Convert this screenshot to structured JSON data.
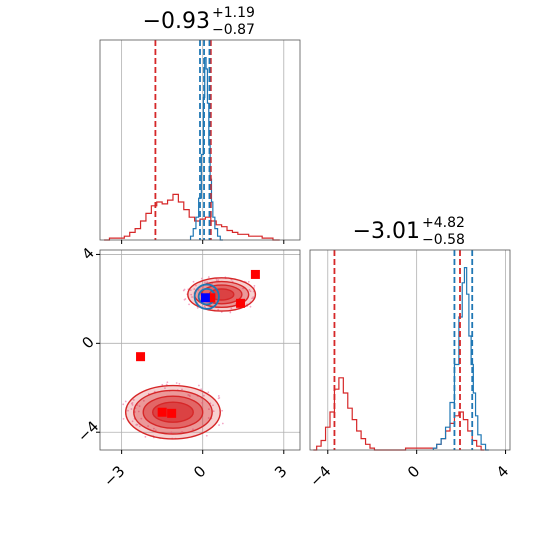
{
  "chart_data": {
    "type": "corner",
    "colors": {
      "blue": "#1f77b4",
      "red": "#d62728",
      "fill_red": "#e8828a",
      "marker_red": "#ff0000",
      "marker_blue": "#0000ff",
      "scatter": "#f4a6c6",
      "grid": "#b0b0b0"
    },
    "params": [
      {
        "title_value": "−0.93",
        "title_plus": "+1.19",
        "title_minus": "−0.87",
        "range": [
          -3.8,
          3.6
        ],
        "ticks": [
          -3,
          0,
          3
        ],
        "tick_labels": [
          "−3",
          "0",
          "3"
        ],
        "blue_hist": {
          "x": [
            -0.4,
            -0.3,
            -0.2,
            -0.1,
            0.0,
            0.05,
            0.1,
            0.15,
            0.2,
            0.25,
            0.3,
            0.35,
            0.4,
            0.5,
            0.6,
            0.7
          ],
          "y": [
            0.02,
            0.06,
            0.12,
            0.22,
            0.45,
            0.75,
            0.96,
            0.9,
            0.72,
            0.5,
            0.32,
            0.2,
            0.12,
            0.06,
            0.02,
            0.0
          ]
        },
        "red_hist": {
          "x": [
            -3.6,
            -3.3,
            -3.0,
            -2.8,
            -2.6,
            -2.4,
            -2.2,
            -2.0,
            -1.8,
            -1.6,
            -1.4,
            -1.2,
            -1.0,
            -0.8,
            -0.6,
            -0.4,
            -0.2,
            0.0,
            0.2,
            0.4,
            0.6,
            0.8,
            1.0,
            1.2,
            1.4,
            1.6,
            1.8,
            2.0,
            2.4,
            2.8
          ],
          "y": [
            0.0,
            0.01,
            0.01,
            0.02,
            0.04,
            0.06,
            0.1,
            0.14,
            0.18,
            0.2,
            0.19,
            0.21,
            0.24,
            0.2,
            0.16,
            0.12,
            0.1,
            0.11,
            0.12,
            0.1,
            0.08,
            0.07,
            0.05,
            0.04,
            0.03,
            0.03,
            0.02,
            0.02,
            0.01,
            0.0
          ]
        },
        "blue_lines": [
          -0.1,
          0.05,
          0.25
        ],
        "red_lines": [
          -1.75,
          0.3
        ]
      },
      {
        "title_value": "−3.01",
        "title_plus": "+4.82",
        "title_minus": "−0.58",
        "range": [
          -4.8,
          4.2
        ],
        "ticks": [
          -4,
          0,
          4
        ],
        "tick_labels": [
          "−4",
          "0",
          "4"
        ],
        "blue_hist": {
          "x": [
            0.8,
            1.0,
            1.2,
            1.4,
            1.6,
            1.8,
            2.0,
            2.1,
            2.2,
            2.3,
            2.4,
            2.5,
            2.6,
            2.7,
            2.8,
            3.0,
            3.2
          ],
          "y": [
            0.01,
            0.03,
            0.06,
            0.12,
            0.25,
            0.45,
            0.7,
            0.88,
            0.96,
            0.82,
            0.6,
            0.45,
            0.3,
            0.18,
            0.08,
            0.03,
            0.0
          ]
        },
        "red_hist": {
          "x": [
            -4.6,
            -4.4,
            -4.2,
            -4.0,
            -3.8,
            -3.6,
            -3.4,
            -3.2,
            -3.0,
            -2.8,
            -2.6,
            -2.4,
            -2.2,
            -2.0,
            -1.8,
            0.8,
            1.0,
            1.2,
            1.4,
            1.6,
            1.8,
            2.0,
            2.2,
            2.4,
            2.6,
            2.8,
            3.0
          ],
          "y": [
            0.0,
            0.02,
            0.05,
            0.12,
            0.2,
            0.32,
            0.38,
            0.3,
            0.22,
            0.16,
            0.1,
            0.06,
            0.03,
            0.01,
            0.0,
            0.01,
            0.03,
            0.06,
            0.1,
            0.14,
            0.18,
            0.2,
            0.16,
            0.1,
            0.05,
            0.02,
            0.0
          ]
        },
        "blue_lines": [
          1.7,
          2.5
        ],
        "red_lines": [
          -3.7,
          1.95
        ]
      }
    ],
    "joint": {
      "red_blobs": [
        {
          "cx": -1.1,
          "cy": -3.1,
          "rx": [
            1.75,
            1.45,
            1.1,
            0.75
          ],
          "ry": [
            1.2,
            0.98,
            0.72,
            0.45
          ]
        },
        {
          "cx": 0.7,
          "cy": 2.2,
          "rx": [
            1.25,
            1.0,
            0.75,
            0.45
          ],
          "ry": [
            0.75,
            0.58,
            0.42,
            0.25
          ]
        }
      ],
      "blue_blob": {
        "cx": 0.15,
        "cy": 2.1,
        "rx": [
          0.45,
          0.3
        ],
        "ry": [
          0.55,
          0.35
        ]
      },
      "red_points": [
        {
          "x": 1.95,
          "y": 3.1
        },
        {
          "x": -2.3,
          "y": -0.6
        },
        {
          "x": 1.4,
          "y": 1.8
        },
        {
          "x": -1.5,
          "y": -3.1
        },
        {
          "x": -1.15,
          "y": -3.15
        },
        {
          "x": 0.3,
          "y": 2.05
        }
      ],
      "blue_points": [
        {
          "x": 0.1,
          "y": 2.05
        }
      ]
    }
  }
}
